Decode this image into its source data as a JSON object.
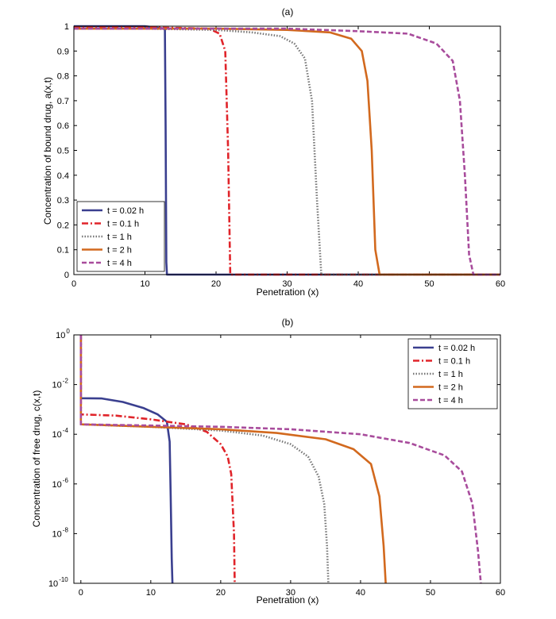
{
  "figure": {
    "panels": [
      "(a)",
      "(b)"
    ]
  },
  "chart_data": [
    {
      "type": "line",
      "panel_label": "(a)",
      "title": "(a)",
      "xlabel": "Penetration (x)",
      "ylabel": "Concentration of bound drug, a(x,t)",
      "xlim": [
        0,
        60
      ],
      "ylim": [
        0,
        1
      ],
      "yscale": "linear",
      "xticks": [
        0,
        10,
        20,
        30,
        40,
        50,
        60
      ],
      "yticks": [
        0,
        0.1,
        0.2,
        0.3,
        0.4,
        0.5,
        0.6,
        0.7,
        0.8,
        0.9,
        1
      ],
      "ytick_labels": [
        "0",
        "0.1",
        "0.2",
        "0.3",
        "0.4",
        "0.5",
        "0.6",
        "0.7",
        "0.8",
        "0.9",
        "1"
      ],
      "legend_position": "bottom-left",
      "series": [
        {
          "name": "t = 0.02 h",
          "color": "#3a3f8f",
          "dash": "solid",
          "x": [
            0,
            5,
            10,
            12.8,
            12.9,
            13.0,
            13.1,
            60
          ],
          "y": [
            1,
            1,
            1,
            0.99,
            0.6,
            0.05,
            0,
            0
          ]
        },
        {
          "name": "t = 0.1 h",
          "color": "#e0242a",
          "dash": "dashdot",
          "x": [
            0,
            5,
            10,
            15,
            19,
            20.5,
            21.3,
            21.7,
            22.0,
            60
          ],
          "y": [
            0.995,
            0.995,
            0.995,
            0.993,
            0.99,
            0.97,
            0.9,
            0.5,
            0,
            0
          ]
        },
        {
          "name": "t = 1 h",
          "color": "#777777",
          "dash": "dotted",
          "x": [
            0,
            10,
            20,
            25,
            29,
            31,
            32.5,
            33.5,
            34.2,
            34.8,
            60
          ],
          "y": [
            0.99,
            0.99,
            0.985,
            0.975,
            0.96,
            0.93,
            0.87,
            0.7,
            0.3,
            0,
            0
          ]
        },
        {
          "name": "t = 2 h",
          "color": "#d2691e",
          "dash": "solid",
          "x": [
            0,
            10,
            20,
            30,
            36,
            39,
            40.5,
            41.3,
            41.9,
            42.4,
            43.0,
            60
          ],
          "y": [
            0.99,
            0.99,
            0.99,
            0.985,
            0.975,
            0.95,
            0.9,
            0.78,
            0.5,
            0.1,
            0,
            0
          ]
        },
        {
          "name": "t = 4 h",
          "color": "#a84c9c",
          "dash": "dashed",
          "x": [
            0,
            20,
            30,
            40,
            47,
            51,
            53.3,
            54.3,
            55.0,
            55.6,
            56.2,
            60
          ],
          "y": [
            0.99,
            0.99,
            0.99,
            0.98,
            0.97,
            0.93,
            0.86,
            0.7,
            0.4,
            0.08,
            0,
            0
          ]
        }
      ]
    },
    {
      "type": "line",
      "panel_label": "(b)",
      "title": "(b)",
      "xlabel": "Penetration (x)",
      "ylabel": "Concentration of free drug, c(x,t)",
      "xlim": [
        -1,
        60
      ],
      "ylim_log10": [
        -10,
        0
      ],
      "yscale": "log",
      "xticks": [
        0,
        10,
        20,
        30,
        40,
        50,
        60
      ],
      "yticks_log10": [
        0,
        -2,
        -4,
        -6,
        -8,
        -10
      ],
      "ytick_labels": [
        {
          "base": "10",
          "exp": "0"
        },
        {
          "base": "10",
          "exp": "-2"
        },
        {
          "base": "10",
          "exp": "-4"
        },
        {
          "base": "10",
          "exp": "-6"
        },
        {
          "base": "10",
          "exp": "-8"
        },
        {
          "base": "10",
          "exp": "-10"
        }
      ],
      "legend_position": "top-right",
      "series": [
        {
          "name": "t = 0.02 h",
          "color": "#3a3f8f",
          "dash": "solid",
          "x": [
            0,
            0,
            0,
            3,
            6,
            9,
            11,
            12.3,
            12.7,
            12.85,
            13.0,
            13.1
          ],
          "log10_y": [
            0,
            -0.2,
            -2.55,
            -2.56,
            -2.7,
            -2.95,
            -3.2,
            -3.5,
            -4.3,
            -6.5,
            -9,
            -10
          ]
        },
        {
          "name": "t = 0.1 h",
          "color": "#e0242a",
          "dash": "dashdot",
          "x": [
            0,
            0,
            0,
            5,
            10,
            15,
            18,
            20,
            21,
            21.5,
            21.9,
            22.0
          ],
          "log10_y": [
            0,
            -0.2,
            -3.2,
            -3.25,
            -3.4,
            -3.6,
            -3.9,
            -4.4,
            -4.9,
            -5.6,
            -8,
            -10
          ]
        },
        {
          "name": "t = 1 h",
          "color": "#777777",
          "dash": "dotted",
          "x": [
            0,
            0,
            0,
            10,
            20,
            26,
            30,
            32.5,
            34,
            34.8,
            35.2,
            35.4
          ],
          "log10_y": [
            0,
            -0.2,
            -3.6,
            -3.7,
            -3.85,
            -4.05,
            -4.4,
            -4.9,
            -5.7,
            -6.8,
            -8.5,
            -10
          ]
        },
        {
          "name": "t = 2 h",
          "color": "#d2691e",
          "dash": "solid",
          "x": [
            0,
            0,
            0,
            10,
            20,
            28,
            35,
            39,
            41.5,
            42.7,
            43.3,
            43.6
          ],
          "log10_y": [
            0,
            -0.2,
            -3.6,
            -3.7,
            -3.8,
            -3.95,
            -4.2,
            -4.6,
            -5.2,
            -6.5,
            -8.5,
            -10
          ]
        },
        {
          "name": "t = 4 h",
          "color": "#a84c9c",
          "dash": "dashed",
          "x": [
            0,
            0,
            0,
            10,
            20,
            30,
            40,
            47,
            52,
            54.5,
            56,
            56.8,
            57.2
          ],
          "log10_y": [
            0,
            -0.2,
            -3.6,
            -3.65,
            -3.7,
            -3.8,
            -4.0,
            -4.35,
            -4.85,
            -5.5,
            -6.8,
            -8.7,
            -10
          ]
        }
      ]
    }
  ]
}
